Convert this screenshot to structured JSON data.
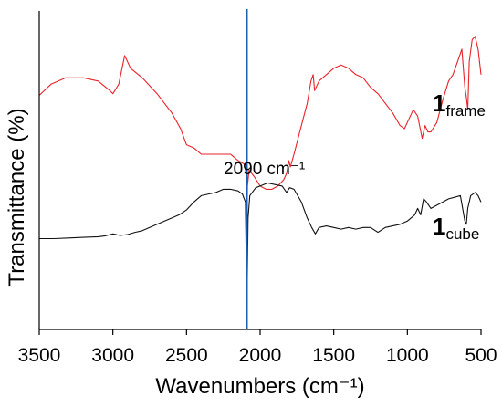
{
  "chart_data": {
    "type": "line",
    "xlabel": "Wavenumbers (cm⁻¹)",
    "ylabel": "Transmittance (%)",
    "xlim": [
      3500,
      500
    ],
    "x_reversed": true,
    "x_ticks": [
      3500,
      3000,
      2500,
      2000,
      1500,
      1000,
      500
    ],
    "y_ticks_shown": false,
    "marker_line": {
      "x": 2090,
      "label": "2090 cm⁻¹",
      "color": "#1a5fb4"
    },
    "series": [
      {
        "name_main": "1",
        "name_sub": "frame",
        "color": "#e8232a",
        "points": [
          [
            3500,
            0.735
          ],
          [
            3420,
            0.77
          ],
          [
            3320,
            0.79
          ],
          [
            3200,
            0.79
          ],
          [
            3100,
            0.78
          ],
          [
            3020,
            0.75
          ],
          [
            3000,
            0.74
          ],
          [
            2960,
            0.77
          ],
          [
            2920,
            0.86
          ],
          [
            2880,
            0.82
          ],
          [
            2800,
            0.79
          ],
          [
            2700,
            0.74
          ],
          [
            2600,
            0.68
          ],
          [
            2540,
            0.63
          ],
          [
            2500,
            0.58
          ],
          [
            2450,
            0.57
          ],
          [
            2400,
            0.55
          ],
          [
            2300,
            0.55
          ],
          [
            2200,
            0.55
          ],
          [
            2150,
            0.53
          ],
          [
            2110,
            0.52
          ],
          [
            2095,
            0.49
          ],
          [
            2090,
            0.3
          ],
          [
            2086,
            0.45
          ],
          [
            2075,
            0.5
          ],
          [
            2040,
            0.48
          ],
          [
            2000,
            0.45
          ],
          [
            1960,
            0.44
          ],
          [
            1920,
            0.44
          ],
          [
            1880,
            0.45
          ],
          [
            1840,
            0.47
          ],
          [
            1820,
            0.49
          ],
          [
            1805,
            0.53
          ],
          [
            1795,
            0.51
          ],
          [
            1770,
            0.55
          ],
          [
            1720,
            0.64
          ],
          [
            1680,
            0.71
          ],
          [
            1655,
            0.78
          ],
          [
            1640,
            0.8
          ],
          [
            1630,
            0.75
          ],
          [
            1600,
            0.78
          ],
          [
            1550,
            0.8
          ],
          [
            1500,
            0.82
          ],
          [
            1450,
            0.83
          ],
          [
            1400,
            0.82
          ],
          [
            1350,
            0.8
          ],
          [
            1300,
            0.79
          ],
          [
            1250,
            0.76
          ],
          [
            1200,
            0.74
          ],
          [
            1150,
            0.71
          ],
          [
            1100,
            0.68
          ],
          [
            1050,
            0.64
          ],
          [
            1020,
            0.63
          ],
          [
            990,
            0.66
          ],
          [
            960,
            0.69
          ],
          [
            930,
            0.67
          ],
          [
            900,
            0.6
          ],
          [
            880,
            0.64
          ],
          [
            860,
            0.62
          ],
          [
            840,
            0.62
          ],
          [
            800,
            0.65
          ],
          [
            760,
            0.72
          ],
          [
            720,
            0.78
          ],
          [
            690,
            0.8
          ],
          [
            660,
            0.84
          ],
          [
            630,
            0.88
          ],
          [
            610,
            0.76
          ],
          [
            600,
            0.73
          ],
          [
            590,
            0.69
          ],
          [
            580,
            0.84
          ],
          [
            560,
            0.91
          ],
          [
            540,
            0.92
          ],
          [
            520,
            0.88
          ],
          [
            500,
            0.8
          ]
        ]
      },
      {
        "name_main": "1",
        "name_sub": "cube",
        "color": "#111111",
        "points": [
          [
            3500,
            0.285
          ],
          [
            3400,
            0.285
          ],
          [
            3300,
            0.287
          ],
          [
            3200,
            0.289
          ],
          [
            3100,
            0.291
          ],
          [
            3050,
            0.294
          ],
          [
            3000,
            0.3
          ],
          [
            2950,
            0.295
          ],
          [
            2900,
            0.298
          ],
          [
            2850,
            0.305
          ],
          [
            2800,
            0.31
          ],
          [
            2700,
            0.33
          ],
          [
            2600,
            0.35
          ],
          [
            2550,
            0.36
          ],
          [
            2500,
            0.375
          ],
          [
            2450,
            0.4
          ],
          [
            2400,
            0.42
          ],
          [
            2300,
            0.43
          ],
          [
            2250,
            0.44
          ],
          [
            2200,
            0.44
          ],
          [
            2150,
            0.435
          ],
          [
            2120,
            0.425
          ],
          [
            2100,
            0.4
          ],
          [
            2090,
            0.06
          ],
          [
            2082,
            0.35
          ],
          [
            2070,
            0.42
          ],
          [
            2030,
            0.445
          ],
          [
            2000,
            0.45
          ],
          [
            1950,
            0.46
          ],
          [
            1900,
            0.455
          ],
          [
            1850,
            0.45
          ],
          [
            1820,
            0.43
          ],
          [
            1800,
            0.445
          ],
          [
            1770,
            0.44
          ],
          [
            1720,
            0.4
          ],
          [
            1680,
            0.35
          ],
          [
            1650,
            0.32
          ],
          [
            1625,
            0.3
          ],
          [
            1600,
            0.32
          ],
          [
            1550,
            0.325
          ],
          [
            1500,
            0.32
          ],
          [
            1450,
            0.315
          ],
          [
            1400,
            0.32
          ],
          [
            1350,
            0.315
          ],
          [
            1300,
            0.32
          ],
          [
            1250,
            0.32
          ],
          [
            1200,
            0.305
          ],
          [
            1150,
            0.32
          ],
          [
            1100,
            0.325
          ],
          [
            1050,
            0.33
          ],
          [
            1000,
            0.34
          ],
          [
            950,
            0.36
          ],
          [
            930,
            0.38
          ],
          [
            910,
            0.36
          ],
          [
            890,
            0.41
          ],
          [
            870,
            0.4
          ],
          [
            840,
            0.38
          ],
          [
            800,
            0.39
          ],
          [
            760,
            0.4
          ],
          [
            720,
            0.41
          ],
          [
            680,
            0.415
          ],
          [
            640,
            0.42
          ],
          [
            610,
            0.34
          ],
          [
            600,
            0.33
          ],
          [
            590,
            0.38
          ],
          [
            570,
            0.42
          ],
          [
            540,
            0.43
          ],
          [
            520,
            0.42
          ],
          [
            500,
            0.4
          ]
        ]
      }
    ]
  }
}
